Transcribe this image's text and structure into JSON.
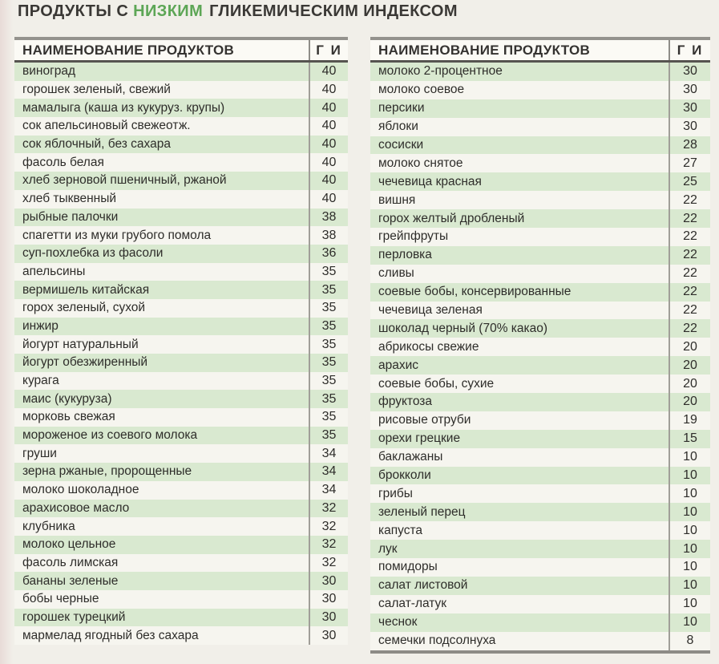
{
  "title": {
    "prefix": "ПРОДУКТЫ С ",
    "highlight": "НИЗКИМ",
    "suffix": "ГЛИКЕМИЧЕСКИМ ИНДЕКСОМ"
  },
  "columns": {
    "name": "НАИМЕНОВАНИЕ ПРОДУКТОВ",
    "gi": "Г И"
  },
  "colors": {
    "highlight_green": "#5da656",
    "row_green": "#d9e9d0",
    "row_plain": "#f6f5ef",
    "border_dark": "#565450",
    "border_gray": "#94928d",
    "text": "#2e2d2a"
  },
  "tables": [
    {
      "rows": [
        {
          "name": "виноград",
          "gi": "40"
        },
        {
          "name": "горошек зеленый, свежий",
          "gi": "40"
        },
        {
          "name": "мамалыга (каша из кукуруз. крупы)",
          "gi": "40"
        },
        {
          "name": "сок апельсиновый свежеотж.",
          "gi": "40"
        },
        {
          "name": "сок яблочный, без сахара",
          "gi": "40"
        },
        {
          "name": "фасоль белая",
          "gi": "40"
        },
        {
          "name": "хлеб зерновой пшеничный, ржаной",
          "gi": "40"
        },
        {
          "name": "хлеб тыквенный",
          "gi": "40"
        },
        {
          "name": "рыбные палочки",
          "gi": "38"
        },
        {
          "name": "спагетти из муки грубого помола",
          "gi": "38"
        },
        {
          "name": "суп-похлебка из фасоли",
          "gi": "36"
        },
        {
          "name": "апельсины",
          "gi": "35"
        },
        {
          "name": "вермишель китайская",
          "gi": "35"
        },
        {
          "name": "горох зеленый, сухой",
          "gi": "35"
        },
        {
          "name": "инжир",
          "gi": "35"
        },
        {
          "name": "йогурт натуральный",
          "gi": "35"
        },
        {
          "name": "йогурт обезжиренный",
          "gi": "35"
        },
        {
          "name": "курага",
          "gi": "35"
        },
        {
          "name": "маис (кукуруза)",
          "gi": "35"
        },
        {
          "name": "морковь свежая",
          "gi": "35"
        },
        {
          "name": "мороженое из соевого молока",
          "gi": "35"
        },
        {
          "name": "груши",
          "gi": "34"
        },
        {
          "name": "зерна ржаные, пророщенные",
          "gi": "34"
        },
        {
          "name": "молоко шоколадное",
          "gi": "34"
        },
        {
          "name": "арахисовое масло",
          "gi": "32"
        },
        {
          "name": "клубника",
          "gi": "32"
        },
        {
          "name": "молоко цельное",
          "gi": "32"
        },
        {
          "name": "фасоль лимская",
          "gi": "32"
        },
        {
          "name": "бананы зеленые",
          "gi": "30"
        },
        {
          "name": "бобы черные",
          "gi": "30"
        },
        {
          "name": "горошек турецкий",
          "gi": "30"
        },
        {
          "name": "мармелад ягодный без сахара",
          "gi": "30"
        }
      ]
    },
    {
      "rows": [
        {
          "name": "молоко 2-процентное",
          "gi": "30"
        },
        {
          "name": "молоко соевое",
          "gi": "30"
        },
        {
          "name": "персики",
          "gi": "30"
        },
        {
          "name": "яблоки",
          "gi": "30"
        },
        {
          "name": "сосиски",
          "gi": "28"
        },
        {
          "name": "молоко снятое",
          "gi": "27"
        },
        {
          "name": "чечевица красная",
          "gi": "25"
        },
        {
          "name": "вишня",
          "gi": "22"
        },
        {
          "name": "горох желтый дробленый",
          "gi": "22"
        },
        {
          "name": "грейпфруты",
          "gi": "22"
        },
        {
          "name": "перловка",
          "gi": "22"
        },
        {
          "name": "сливы",
          "gi": "22"
        },
        {
          "name": "соевые бобы, консервированные",
          "gi": "22"
        },
        {
          "name": "чечевица зеленая",
          "gi": "22"
        },
        {
          "name": "шоколад черный (70% какао)",
          "gi": "22"
        },
        {
          "name": "абрикосы свежие",
          "gi": "20"
        },
        {
          "name": "арахис",
          "gi": "20"
        },
        {
          "name": "соевые бобы, сухие",
          "gi": "20"
        },
        {
          "name": "фруктоза",
          "gi": "20"
        },
        {
          "name": "рисовые отруби",
          "gi": "19"
        },
        {
          "name": "орехи грецкие",
          "gi": "15"
        },
        {
          "name": "баклажаны",
          "gi": "10"
        },
        {
          "name": "брокколи",
          "gi": "10"
        },
        {
          "name": "грибы",
          "gi": "10"
        },
        {
          "name": "зеленый перец",
          "gi": "10"
        },
        {
          "name": "капуста",
          "gi": "10"
        },
        {
          "name": "лук",
          "gi": "10"
        },
        {
          "name": "помидоры",
          "gi": "10"
        },
        {
          "name": "салат листовой",
          "gi": "10"
        },
        {
          "name": "салат-латук",
          "gi": "10"
        },
        {
          "name": "чеснок",
          "gi": "10"
        },
        {
          "name": "семечки подсолнуха",
          "gi": "8"
        }
      ]
    }
  ]
}
